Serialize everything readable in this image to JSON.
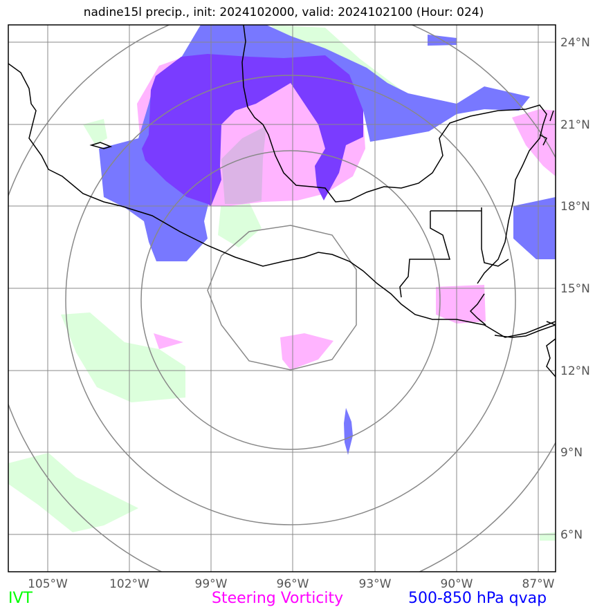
{
  "title": "nadine15l precip., init: 2024102000, valid: 2024102100 (Hour: 024)",
  "lat_labels": [
    "24°N",
    "21°N",
    "18°N",
    "15°N",
    "12°N",
    "9°N",
    "6°N"
  ],
  "lon_labels": [
    "105°W",
    "102°W",
    "99°W",
    "96°W",
    "93°W",
    "90°W",
    "87°W"
  ],
  "legend": {
    "ivt": "IVT",
    "vorticity": "Steering Vorticity",
    "qvap": "500-850 hPa qvap"
  },
  "colors": {
    "ivt": "#00ff00",
    "vorticity": "#ff00ff",
    "qvap": "#0000ff",
    "ivt_fill": "#dcffdc",
    "vorticity_fill": "#ffb4ff",
    "qvap_fill": "#7878ff",
    "overlap_fill": "#7a3cff",
    "grid": "#888888",
    "coast": "#000000"
  }
}
